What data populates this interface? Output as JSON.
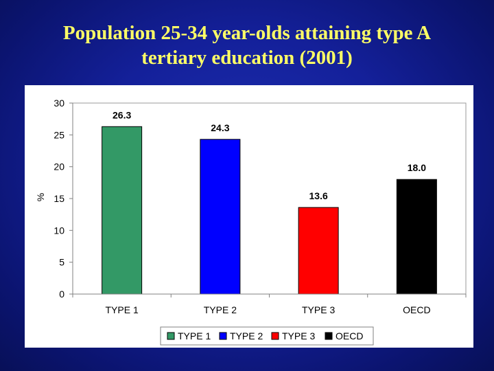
{
  "slide": {
    "title_line1": "Population 25-34 year-olds attaining type A",
    "title_line2": "tertiary education (2001)"
  },
  "chart_data": {
    "type": "bar",
    "title": "Population 25-34 year-olds attaining type A tertiary education (2001)",
    "categories": [
      "TYPE 1",
      "TYPE 2",
      "TYPE 3",
      "OECD"
    ],
    "values": [
      26.3,
      24.3,
      13.6,
      18.0
    ],
    "value_labels": [
      "26.3",
      "24.3",
      "13.6",
      "18.0"
    ],
    "colors": [
      "#339966",
      "#0000ff",
      "#ff0000",
      "#000000"
    ],
    "xlabel": "",
    "ylabel": "%",
    "ylim": [
      0,
      30
    ],
    "yticks": [
      0,
      5,
      10,
      15,
      20,
      25,
      30
    ],
    "grid": false,
    "legend": {
      "position": "bottom",
      "entries": [
        "TYPE 1",
        "TYPE 2",
        "TYPE 3",
        "OECD"
      ]
    }
  }
}
